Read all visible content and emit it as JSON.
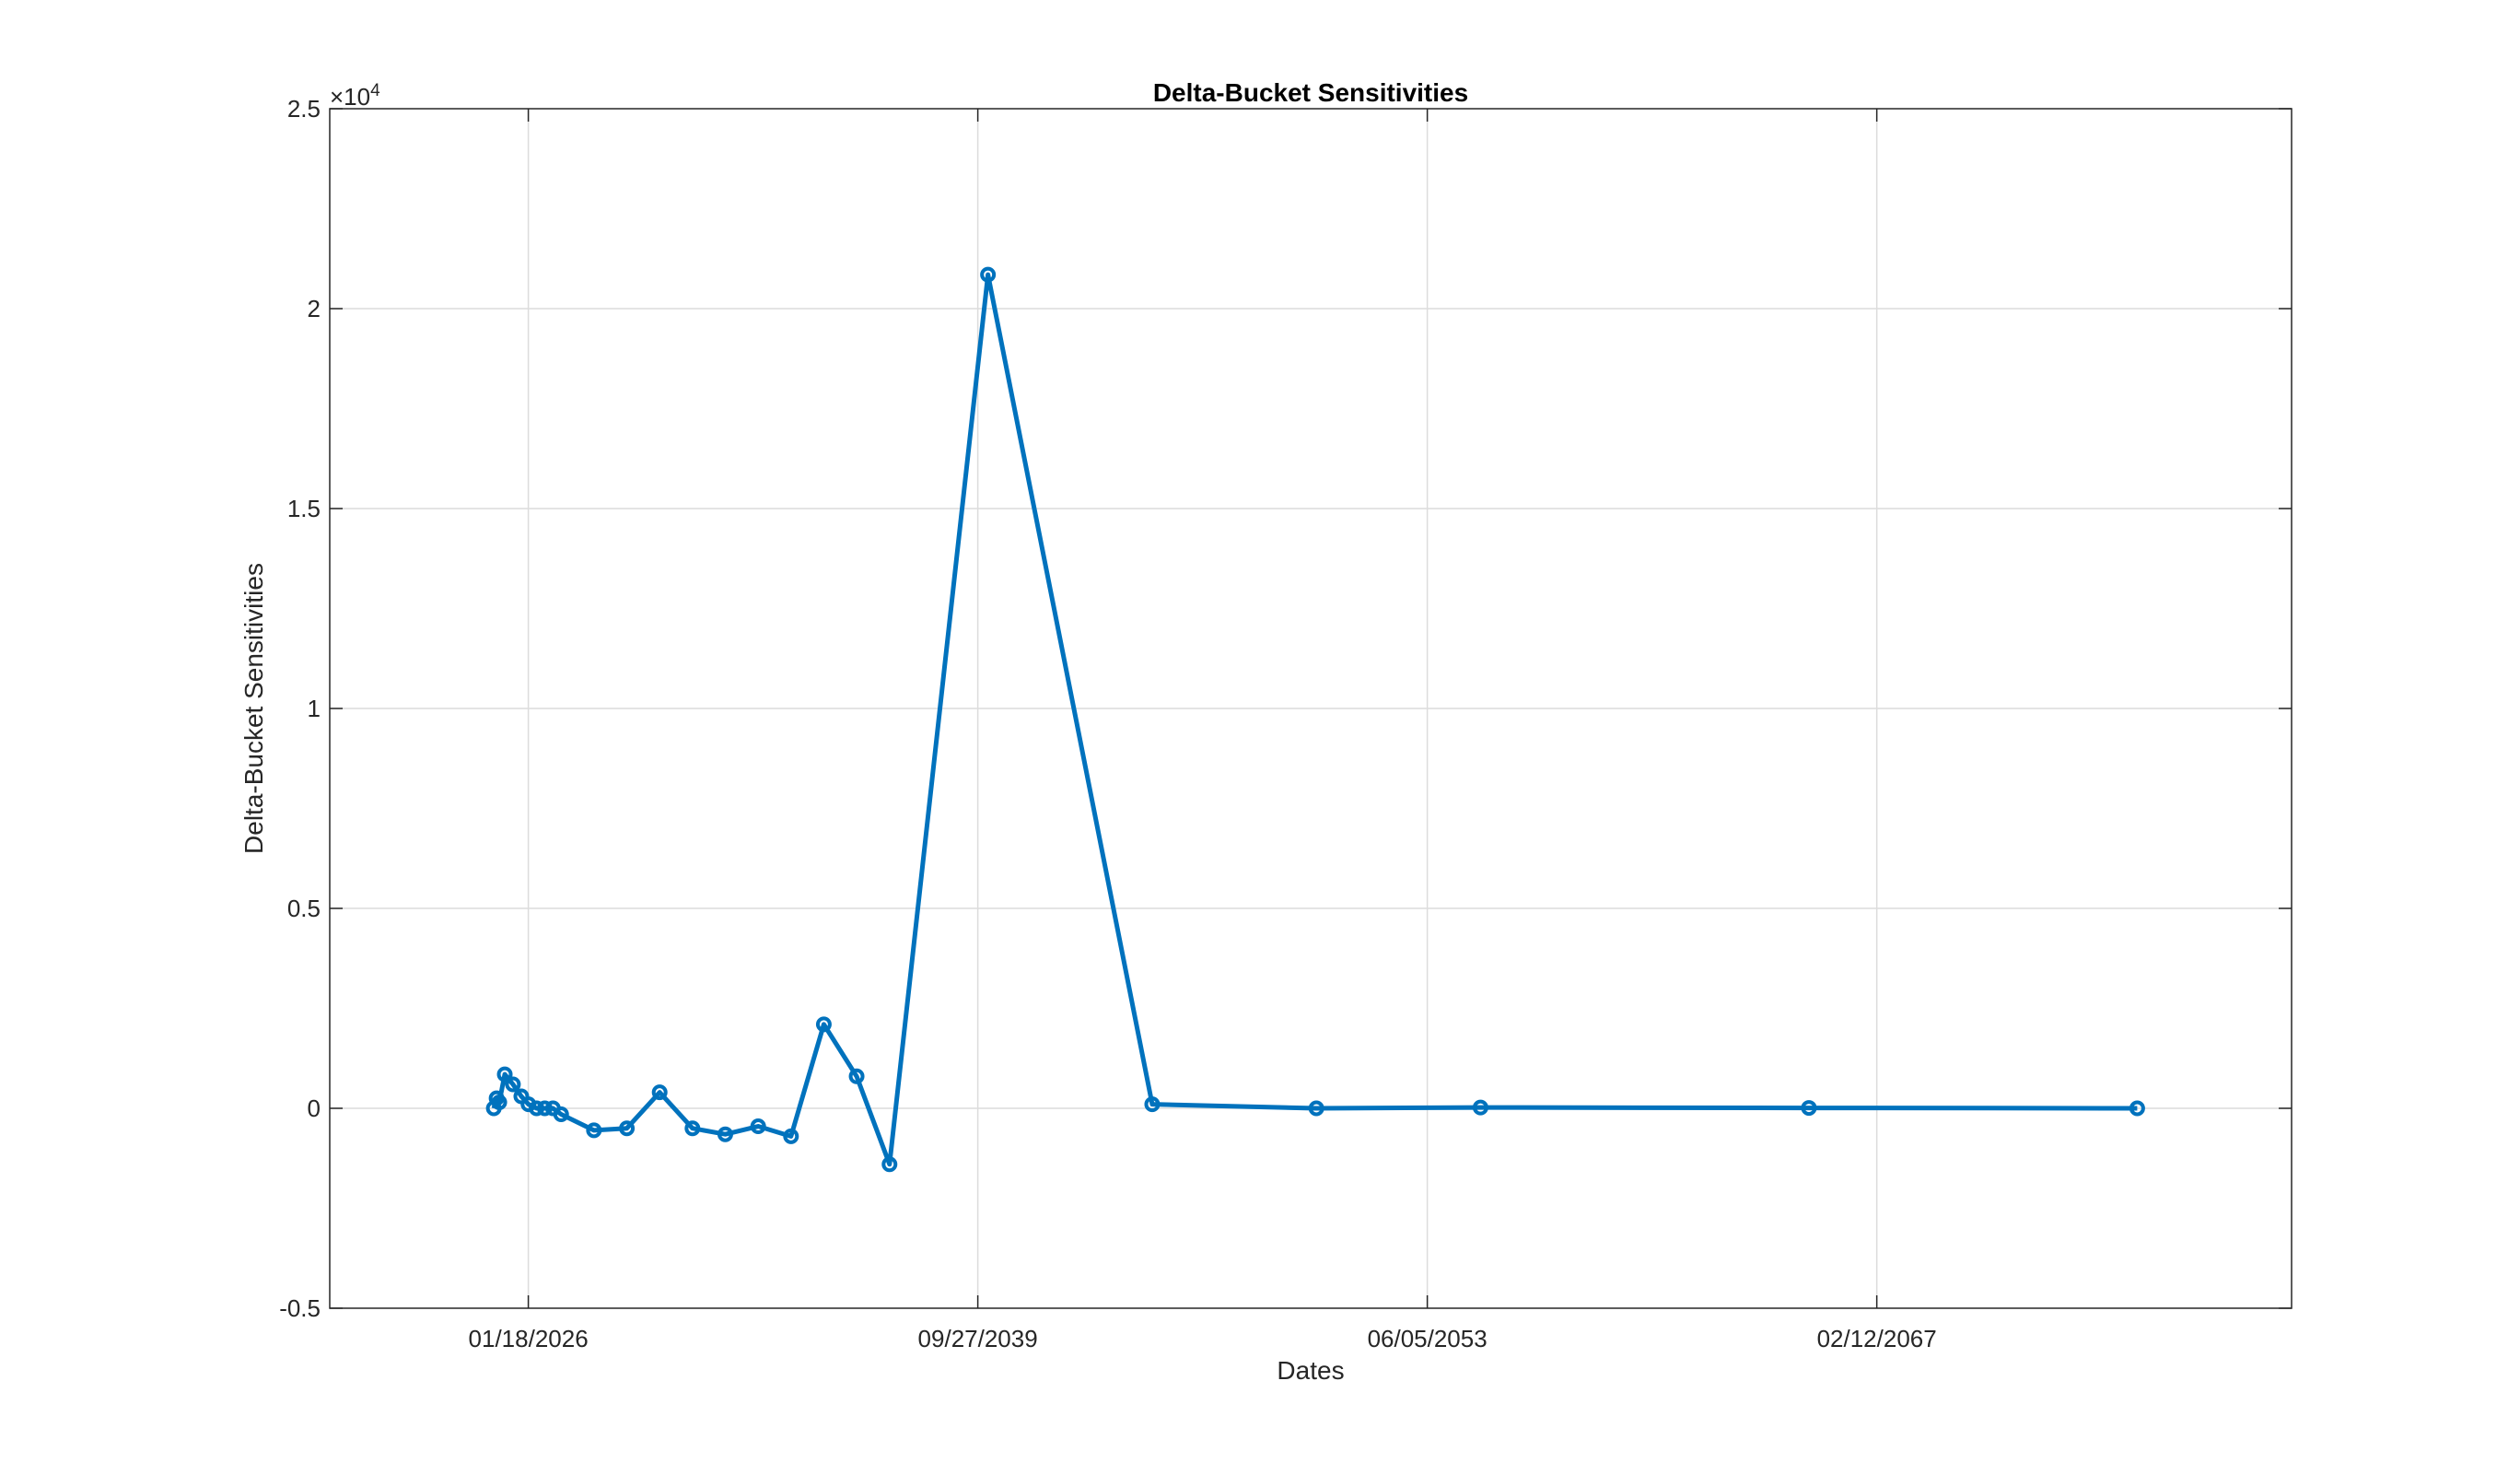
{
  "chart_data": {
    "type": "line",
    "title": "Delta-Bucket Sensitivities",
    "xlabel": "Dates",
    "ylabel": "Delta-Bucket Sensitivities",
    "exponent_label": "×10",
    "exponent_power": "4",
    "grid": true,
    "xlim": [
      "2020-01-01",
      "2079-10-01"
    ],
    "ylim": [
      -0.5,
      2.5
    ],
    "y_scale_factor": 10000,
    "x_ticks": [
      "2026-01-18",
      "2039-09-27",
      "2053-06-05",
      "2067-02-12"
    ],
    "x_tick_labels": [
      "01/18/2026",
      "09/27/2039",
      "06/05/2053",
      "02/12/2067"
    ],
    "y_ticks": [
      -0.5,
      0,
      0.5,
      1,
      1.5,
      2,
      2.5
    ],
    "y_tick_labels": [
      "-0.5",
      "0",
      "0.5",
      "1",
      "1.5",
      "2",
      "2.5"
    ],
    "series": [
      {
        "color": "#0072BD",
        "marker": "circle",
        "points": [
          {
            "x": "2024-12-30",
            "y": 0.0
          },
          {
            "x": "2025-01-30",
            "y": 0.025
          },
          {
            "x": "2025-03-01",
            "y": 0.015
          },
          {
            "x": "2025-05-01",
            "y": 0.085
          },
          {
            "x": "2025-07-31",
            "y": 0.06
          },
          {
            "x": "2025-11-01",
            "y": 0.03
          },
          {
            "x": "2026-01-20",
            "y": 0.01
          },
          {
            "x": "2026-04-20",
            "y": 0.0
          },
          {
            "x": "2026-07-20",
            "y": 0.0
          },
          {
            "x": "2026-10-19",
            "y": 0.0
          },
          {
            "x": "2027-01-18",
            "y": -0.015
          },
          {
            "x": "2028-01-18",
            "y": -0.055
          },
          {
            "x": "2029-01-18",
            "y": -0.05
          },
          {
            "x": "2030-01-18",
            "y": 0.04
          },
          {
            "x": "2031-01-18",
            "y": -0.05
          },
          {
            "x": "2032-01-18",
            "y": -0.065
          },
          {
            "x": "2033-01-18",
            "y": -0.045
          },
          {
            "x": "2034-01-18",
            "y": -0.07
          },
          {
            "x": "2035-01-18",
            "y": 0.21
          },
          {
            "x": "2036-01-18",
            "y": 0.08
          },
          {
            "x": "2037-01-18",
            "y": -0.14
          },
          {
            "x": "2040-01-18",
            "y": 2.085
          },
          {
            "x": "2045-01-18",
            "y": 0.01
          },
          {
            "x": "2050-01-18",
            "y": 0.0
          },
          {
            "x": "2055-01-18",
            "y": 0.002
          },
          {
            "x": "2065-01-18",
            "y": 0.001
          },
          {
            "x": "2075-01-18",
            "y": 0.0
          }
        ]
      }
    ]
  }
}
